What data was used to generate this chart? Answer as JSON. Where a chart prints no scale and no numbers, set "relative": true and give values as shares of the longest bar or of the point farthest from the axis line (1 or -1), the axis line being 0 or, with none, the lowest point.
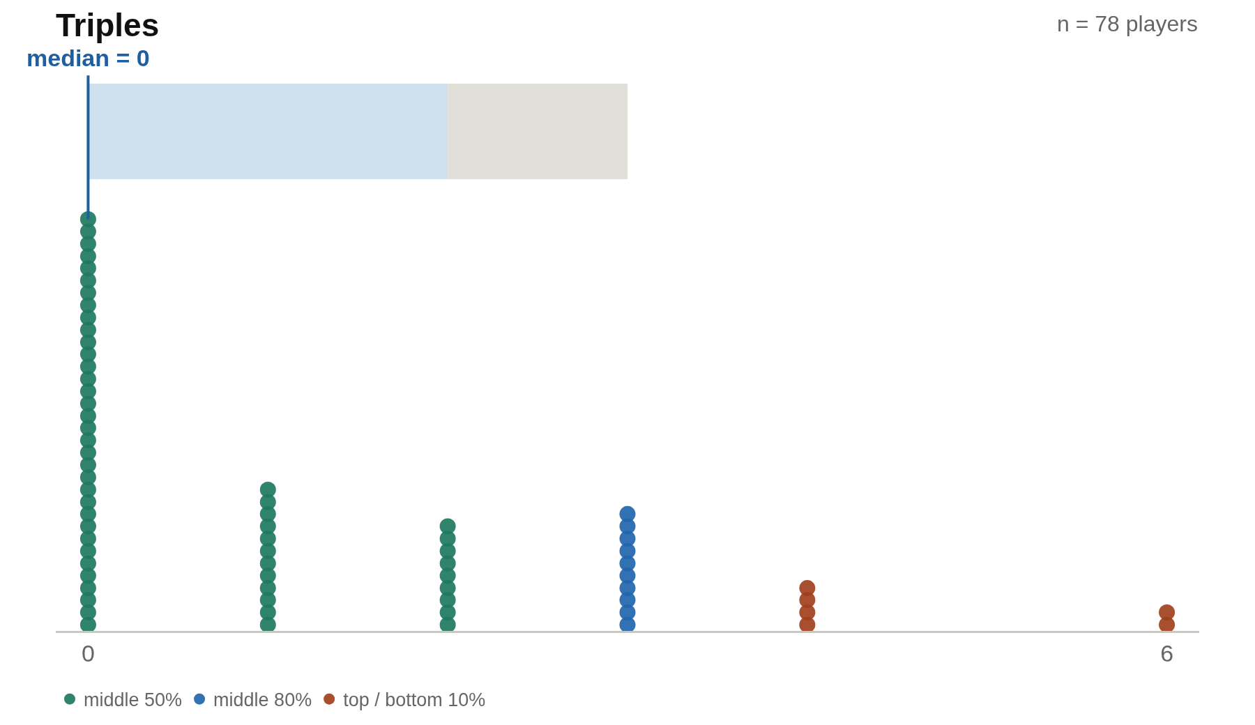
{
  "chart_data": [
    {
      "type": "bar",
      "title": "Triples",
      "annotations": [
        "n = 78 players"
      ],
      "orientation": "horizontal",
      "stacked": true,
      "categories": [
        null
      ],
      "tick_labels": false,
      "xlim": [
        -0.18,
        6.18
      ],
      "ref_lines": [
        {
          "axis": "x",
          "value": 0,
          "label": "median = 0",
          "color": "#1f5fa0"
        }
      ],
      "series": [
        {
          "color": "#cfe1ef",
          "values": [
            2
          ]
        },
        {
          "color": "#e0e0d8",
          "values": [
            1
          ]
        }
      ]
    },
    {
      "type": "scatter",
      "xlim": [
        -0.18,
        6.18
      ],
      "xticks": [
        0,
        6
      ],
      "relative": true,
      "tick_labels": "x",
      "legend": "bottom left",
      "marker": "circle",
      "series": [
        {
          "name": "middle 50%",
          "color": "#1e7a5f",
          "x": [
            0,
            0,
            0,
            0,
            0,
            0,
            0,
            0,
            0,
            0,
            0,
            0,
            0,
            0,
            0,
            0,
            0,
            0,
            0,
            0,
            0,
            0,
            0,
            0,
            0,
            0,
            0,
            0,
            0,
            0,
            0,
            0,
            0,
            0,
            1,
            1,
            1,
            1,
            1,
            1,
            1,
            1,
            1,
            1,
            1,
            1,
            2,
            2,
            2,
            2,
            2,
            2,
            2,
            2,
            2
          ],
          "values": [
            0.015,
            0.045,
            0.075,
            0.104,
            0.134,
            0.164,
            0.194,
            0.224,
            0.254,
            0.284,
            0.313,
            0.343,
            0.373,
            0.403,
            0.433,
            0.463,
            0.493,
            0.522,
            0.552,
            0.582,
            0.612,
            0.642,
            0.672,
            0.701,
            0.731,
            0.761,
            0.791,
            0.821,
            0.851,
            0.881,
            0.91,
            0.94,
            0.97,
            1,
            0.015,
            0.045,
            0.075,
            0.104,
            0.134,
            0.164,
            0.194,
            0.224,
            0.254,
            0.284,
            0.313,
            0.343,
            0.015,
            0.045,
            0.075,
            0.104,
            0.134,
            0.164,
            0.194,
            0.224,
            0.254
          ]
        },
        {
          "name": "middle 80%",
          "color": "#2166ac",
          "x": [
            3,
            3,
            3,
            3,
            3,
            3,
            3,
            3,
            3,
            3
          ],
          "values": [
            0.015,
            0.045,
            0.075,
            0.104,
            0.134,
            0.164,
            0.194,
            0.224,
            0.254,
            0.284
          ]
        },
        {
          "name": "top / bottom 10%",
          "color": "#a0401c",
          "x": [
            4,
            4,
            4,
            4,
            6,
            6
          ],
          "values": [
            0.015,
            0.045,
            0.075,
            0.104,
            0.015,
            0.045
          ]
        }
      ]
    }
  ]
}
